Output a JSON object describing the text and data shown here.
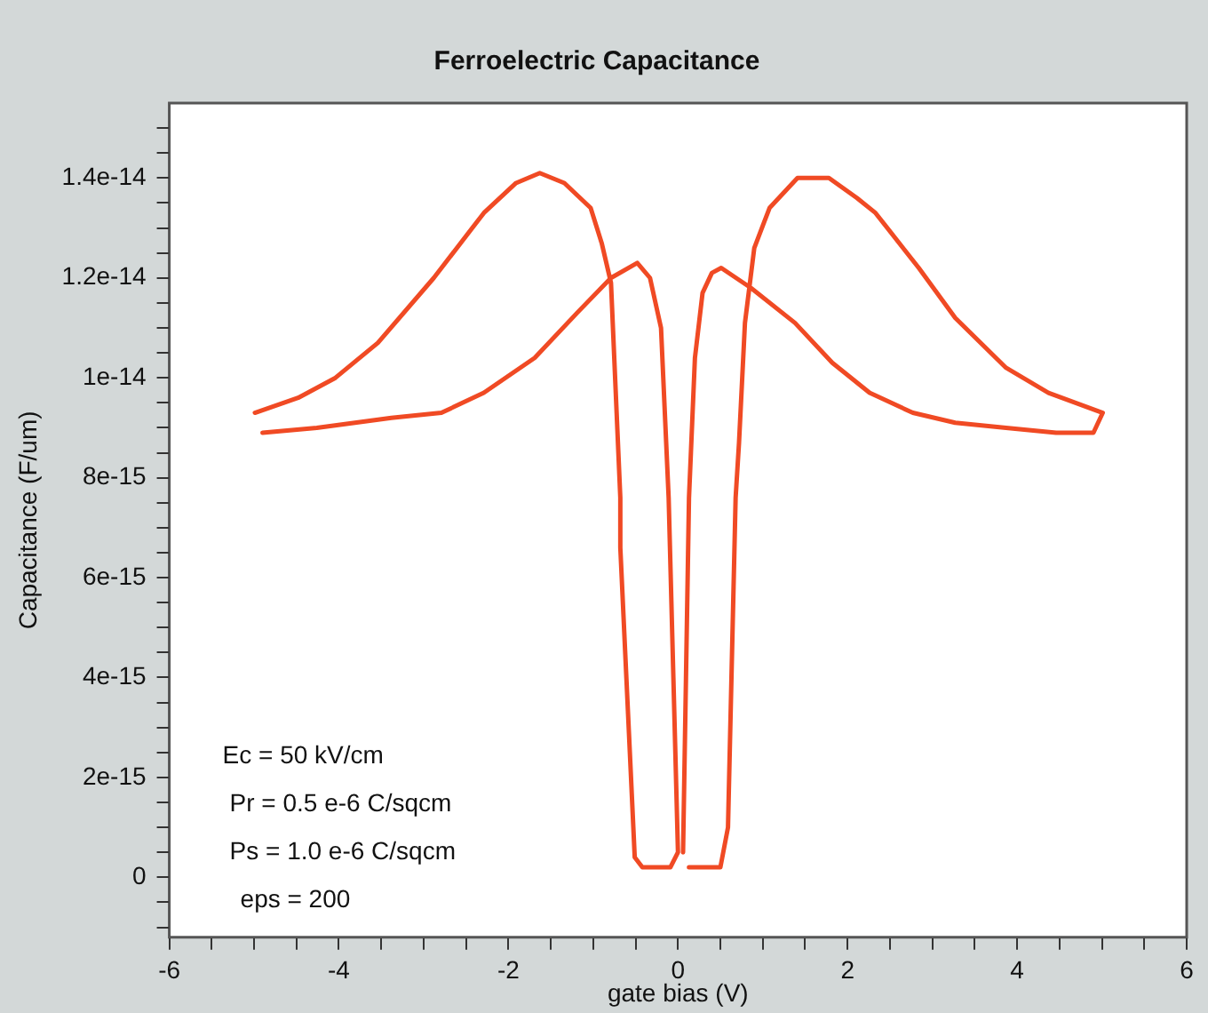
{
  "chart_data": {
    "type": "line",
    "title": "Ferroelectric Capacitance",
    "xlabel": "gate bias (V)",
    "ylabel": "Capacitance (F/um)",
    "xlim": [
      -6,
      6
    ],
    "ylim": [
      -1.2e-15,
      1.55e-14
    ],
    "xticks": [
      -6,
      {
        "value": -5.5,
        "label": null
      },
      {
        "value": -5,
        "label": null
      },
      {
        "value": -4.5,
        "label": null
      },
      -4,
      {
        "value": -3.5,
        "label": null
      },
      {
        "value": -3,
        "label": null
      },
      {
        "value": -2.5,
        "label": null
      },
      -2,
      {
        "value": -1.5,
        "label": null
      },
      {
        "value": -1,
        "label": null
      },
      {
        "value": -0.5,
        "label": null
      },
      0,
      {
        "value": 0.5,
        "label": null
      },
      {
        "value": 1,
        "label": null
      },
      {
        "value": 1.5,
        "label": null
      },
      2,
      {
        "value": 2.5,
        "label": null
      },
      {
        "value": 3,
        "label": null
      },
      {
        "value": 3.5,
        "label": null
      },
      4,
      {
        "value": 4.5,
        "label": null
      },
      {
        "value": 5,
        "label": null
      },
      {
        "value": 5.5,
        "label": null
      },
      6
    ],
    "yticks": [
      {
        "value": -1e-15,
        "label": null
      },
      {
        "value": -5e-16,
        "label": null
      },
      0,
      {
        "value": 5e-16,
        "label": null
      },
      {
        "value": 1e-15,
        "label": null
      },
      {
        "value": 1.5e-15,
        "label": null
      },
      2e-15,
      {
        "value": 2.5e-15,
        "label": null
      },
      {
        "value": 3e-15,
        "label": null
      },
      {
        "value": 3.5e-15,
        "label": null
      },
      4e-15,
      {
        "value": 4.5e-15,
        "label": null
      },
      {
        "value": 5e-15,
        "label": null
      },
      {
        "value": 5.5e-15,
        "label": null
      },
      6e-15,
      {
        "value": 6.5e-15,
        "label": null
      },
      {
        "value": 7e-15,
        "label": null
      },
      {
        "value": 7.5e-15,
        "label": null
      },
      8e-15,
      {
        "value": 8.5e-15,
        "label": null
      },
      {
        "value": 9e-15,
        "label": null
      },
      {
        "value": 9.5e-15,
        "label": null
      },
      1e-14,
      {
        "value": 1.05e-14,
        "label": null
      },
      {
        "value": 1.1e-14,
        "label": null
      },
      {
        "value": 1.15e-14,
        "label": null
      },
      1.2e-14,
      {
        "value": 1.25e-14,
        "label": null
      },
      {
        "value": 1.3e-14,
        "label": null
      },
      {
        "value": 1.35e-14,
        "label": null
      },
      1.4e-14,
      {
        "value": 1.45e-14,
        "label": null
      },
      {
        "value": 1.5e-14,
        "label": null
      }
    ],
    "grid": false,
    "legend": false,
    "marker": "none",
    "line_style": "solid",
    "series": [
      {
        "color": "#f04a24",
        "x": [
          -4.9,
          -4.26,
          -3.38,
          -2.79,
          -2.29,
          -1.69,
          -1.19,
          -0.79,
          -0.48,
          -0.33,
          -0.2,
          -0.11,
          0,
          -0.09,
          -0.42,
          -0.51,
          -0.68,
          -0.68,
          -0.79,
          -0.9,
          -1.03,
          -1.34,
          -1.63,
          -1.91,
          -2.29,
          -2.88,
          -3.54,
          -4.04,
          -4.48,
          -4.99
        ],
        "values": [
          8.9e-15,
          9e-15,
          9.2e-15,
          9.3e-15,
          9.7e-15,
          1.04e-14,
          1.13e-14,
          1.2e-14,
          1.23e-14,
          1.2e-14,
          1.1e-14,
          7.6e-15,
          5e-16,
          2e-16,
          2e-16,
          4e-16,
          6.6e-15,
          7.6e-15,
          1.19e-14,
          1.27e-14,
          1.34e-14,
          1.39e-14,
          1.41e-14,
          1.39e-14,
          1.33e-14,
          1.2e-14,
          1.07e-14,
          1e-14,
          9.6e-15,
          9.3e-15
        ]
      },
      {
        "color": "#f04a24",
        "x": [
          0.13,
          0.5,
          0.59,
          0.68,
          0.72,
          0.79,
          0.9,
          1.08,
          1.41,
          1.78,
          2.11,
          2.33,
          2.84,
          3.27,
          3.87,
          4.37,
          5.01,
          4.9,
          4.46,
          3.87,
          3.27,
          2.77,
          2.26,
          1.82,
          1.38,
          0.86,
          0.51,
          0.4,
          0.29,
          0.2,
          0.13,
          0.06
        ],
        "values": [
          2e-16,
          2e-16,
          1e-15,
          7.6e-15,
          8.7e-15,
          1.11e-14,
          1.26e-14,
          1.34e-14,
          1.4e-14,
          1.4e-14,
          1.36e-14,
          1.33e-14,
          1.22e-14,
          1.12e-14,
          1.02e-14,
          9.7e-15,
          9.3e-15,
          8.9e-15,
          8.9e-15,
          9e-15,
          9.1e-15,
          9.3e-15,
          9.7e-15,
          1.03e-14,
          1.11e-14,
          1.18e-14,
          1.22e-14,
          1.21e-14,
          1.17e-14,
          1.04e-14,
          7.6e-15,
          5e-16
        ]
      }
    ],
    "annotations": [
      "Ec = 50 kV/cm",
      "Pr = 0.5 e-6 C/sqcm",
      "Ps = 1.0 e-6 C/sqcm",
      "eps = 200"
    ]
  }
}
